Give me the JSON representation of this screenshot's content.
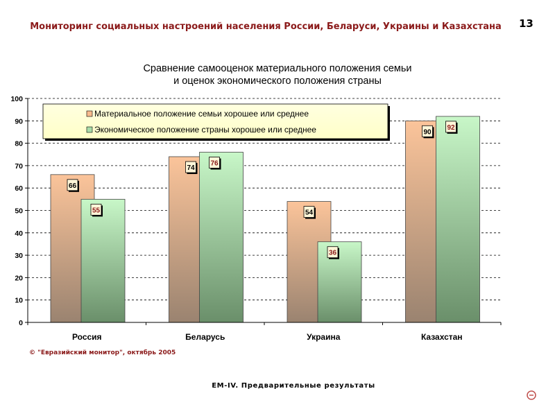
{
  "header": {
    "title": "Мониторинг социальных настроений населения России, Беларуси, Украины и Казахстана",
    "page_number": "13"
  },
  "chart_data": {
    "type": "bar",
    "title": "Сравнение самооценок материального положения семьи\nи оценок экономического положения страны",
    "categories": [
      "Россия",
      "Беларусь",
      "Украина",
      "Казахстан"
    ],
    "series": [
      {
        "name": "Материальное положение семьи хорошее или среднее",
        "values": [
          66,
          74,
          54,
          90
        ],
        "color": "#f7ba8d"
      },
      {
        "name": "Экономическое положение страны хорошее или среднее",
        "values": [
          55,
          76,
          36,
          92
        ],
        "color": "#a8dca8"
      }
    ],
    "ylim": [
      0,
      100
    ],
    "yticks": [
      0,
      10,
      20,
      30,
      40,
      50,
      60,
      70,
      80,
      90,
      100
    ],
    "grid": true,
    "legend_position": "top-left",
    "data_label_colors": [
      "#000000",
      "#8b1a1a"
    ]
  },
  "copyright": "© \"Евразийский монитор\", октябрь 2005",
  "footer": "ЕМ-IV. Предварительные результаты",
  "icon": "minus-circle-icon"
}
